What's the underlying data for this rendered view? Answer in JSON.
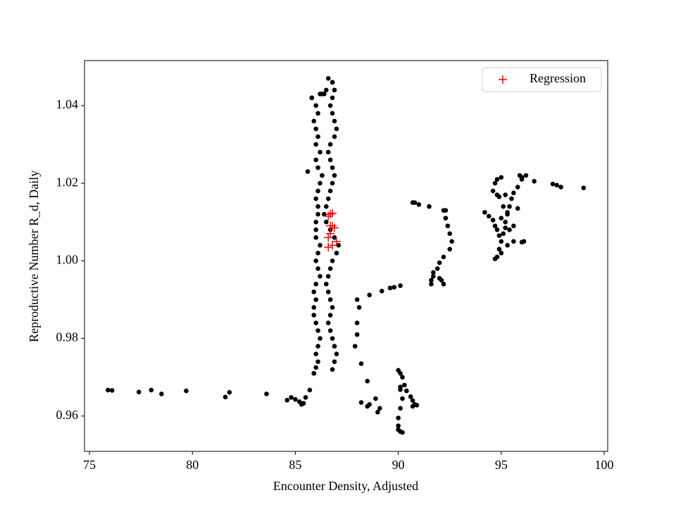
{
  "chart_data": {
    "type": "scatter",
    "x_label": "Encounter Density, Adjusted",
    "y_label": "Reproductive Number R_d, Daily",
    "xlim": [
      74.76,
      100.17
    ],
    "ylim": [
      0.9509,
      1.0516
    ],
    "xticks": [
      75,
      80,
      85,
      90,
      95,
      100
    ],
    "yticks": [
      0.96,
      0.98,
      {
        "value": 1,
        "label": "1.00"
      },
      1.02,
      1.04
    ],
    "legend": "upper right",
    "series": [
      {
        "color": "#000000",
        "marker": "circle",
        "x": [
          75.9,
          76.1,
          77.4,
          78.0,
          78.5,
          79.7,
          81.6,
          81.8,
          83.6,
          84.6,
          84.8,
          85.0,
          85.2,
          85.3,
          85.4,
          85.5,
          85.7,
          85.9,
          86.0,
          86.1,
          86.0,
          86.1,
          86.2,
          86.1,
          86.0,
          85.9,
          85.9,
          86.0,
          85.9,
          86.0,
          86.2,
          86.1,
          86.0,
          86.1,
          86.2,
          86.0,
          86.0,
          86.0,
          86.1,
          86.1,
          86.0,
          86.1,
          86.2,
          86.3,
          86.1,
          86.0,
          86.2,
          86.0,
          86.1,
          86.0,
          85.9,
          86.1,
          86.0,
          85.8,
          86.8,
          86.9,
          87.0,
          86.9,
          86.8,
          86.7,
          86.6,
          86.7,
          86.8,
          86.7,
          86.6,
          86.5,
          86.6,
          86.7,
          86.8,
          87.0,
          87.1,
          86.9,
          86.7,
          86.5,
          86.4,
          86.5,
          86.6,
          86.7,
          86.8,
          86.9,
          86.8,
          86.7,
          86.6,
          86.7,
          86.9,
          87.0,
          86.9,
          86.8,
          86.7,
          86.8,
          86.9,
          86.8,
          86.2,
          86.3,
          86.4,
          86.5,
          85.8,
          86.6,
          86.8,
          85.6,
          85.9,
          88.0,
          88.1,
          88.0,
          88.0,
          87.9,
          88.2,
          88.5,
          88.2,
          88.6,
          88.5,
          88.9,
          89.0,
          89.1,
          88.6,
          89.2,
          89.6,
          89.8,
          90.1,
          90.0,
          90.1,
          90.2,
          90.3,
          90.1,
          90.4,
          90.6,
          90.7,
          90.8,
          90.9,
          90.7,
          90.1,
          90.0,
          90.0,
          90.1,
          90.2,
          90.0,
          90.2,
          90.1,
          90.7,
          90.8,
          91.0,
          91.5,
          92.2,
          92.3,
          92.3,
          92.4,
          92.5,
          92.6,
          92.5,
          92.2,
          92.0,
          91.9,
          91.7,
          91.7,
          91.6,
          91.6,
          92.0,
          92.1,
          92.2,
          94.2,
          94.4,
          94.6,
          94.7,
          94.8,
          94.9,
          95.0,
          94.9,
          94.8,
          94.7,
          95.0,
          95.3,
          95.6,
          96.0,
          96.1,
          95.2,
          95.0,
          95.3,
          95.4,
          95.5,
          95.2,
          94.8,
          94.6,
          94.7,
          94.8,
          95.0,
          94.9,
          95.6,
          95.8,
          96.0,
          96.2,
          96.0,
          95.9,
          96.6,
          97.5,
          97.7,
          97.9,
          99.0,
          95.1,
          95.4,
          95.2,
          95.6,
          95.3,
          95.1,
          95.8
        ],
        "y": [
          0.9667,
          0.9666,
          0.9662,
          0.9667,
          0.9657,
          0.9665,
          0.9649,
          0.9661,
          0.9657,
          0.9641,
          0.9648,
          0.9643,
          0.9637,
          0.963,
          0.9633,
          0.9648,
          0.9667,
          0.971,
          0.9725,
          0.974,
          0.976,
          0.978,
          0.98,
          0.982,
          0.984,
          0.986,
          0.988,
          0.99,
          0.992,
          0.994,
          0.996,
          0.998,
          1.0,
          1.002,
          1.004,
          1.006,
          1.008,
          1.01,
          1.012,
          1.014,
          1.016,
          1.018,
          1.02,
          1.022,
          1.024,
          1.026,
          1.028,
          1.03,
          1.032,
          1.034,
          1.036,
          1.038,
          1.04,
          1.042,
          0.972,
          0.974,
          0.976,
          0.978,
          0.98,
          0.982,
          0.984,
          0.986,
          0.988,
          0.99,
          0.992,
          0.994,
          0.996,
          0.998,
          1.0,
          1.002,
          1.004,
          1.006,
          1.008,
          1.01,
          1.012,
          1.014,
          1.016,
          1.018,
          1.02,
          1.022,
          1.024,
          1.026,
          1.028,
          1.03,
          1.032,
          1.034,
          1.036,
          1.038,
          1.04,
          1.042,
          1.044,
          1.046,
          1.043,
          1.043,
          1.043,
          1.044,
          1.042,
          1.047,
          1.046,
          1.023,
          0.971,
          0.99,
          0.988,
          0.984,
          0.981,
          0.978,
          0.9735,
          0.969,
          0.9635,
          0.963,
          0.9625,
          0.9645,
          0.961,
          0.962,
          0.9912,
          0.9922,
          0.993,
          0.9932,
          0.9936,
          0.9718,
          0.971,
          0.97,
          0.968,
          0.9668,
          0.9665,
          0.965,
          0.964,
          0.963,
          0.9628,
          0.9625,
          0.962,
          0.9595,
          0.9575,
          0.956,
          0.9558,
          0.9565,
          0.9645,
          0.9675,
          1.015,
          1.015,
          1.0145,
          1.014,
          1.013,
          1.013,
          1.011,
          1.009,
          1.007,
          1.005,
          1.003,
          1.001,
          0.9995,
          0.998,
          0.997,
          0.996,
          0.995,
          0.994,
          0.9955,
          0.995,
          0.994,
          1.0125,
          1.0115,
          1.0105,
          1.009,
          1.008,
          1.0065,
          1.005,
          1.003,
          1.001,
          1.0005,
          1.002,
          1.004,
          1.005,
          1.0048,
          1.005,
          1.01,
          1.011,
          1.012,
          1.014,
          1.016,
          1.017,
          1.017,
          1.018,
          1.02,
          1.021,
          1.0215,
          1.0165,
          1.0175,
          1.019,
          1.021,
          1.022,
          1.0215,
          1.022,
          1.0205,
          1.0198,
          1.0195,
          1.019,
          1.0188,
          1.007,
          1.008,
          1.0085,
          1.009,
          1.0125,
          1.014,
          1.0135
        ]
      },
      {
        "name": "Regression",
        "color": "#ff0000",
        "marker": "plus",
        "x": [
          86.6,
          86.7,
          86.8,
          86.8,
          86.9,
          87.0,
          86.8,
          86.6,
          86.7,
          86.6,
          86.7
        ],
        "y": [
          1.0115,
          1.012,
          1.0123,
          1.009,
          1.0085,
          1.005,
          1.004,
          1.006,
          1.007,
          1.0035,
          1.009
        ]
      }
    ]
  }
}
